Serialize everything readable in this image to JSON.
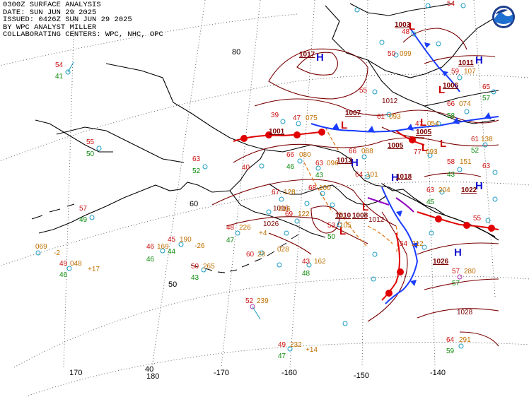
{
  "header": {
    "line1": "0300Z SURFACE ANALYSIS",
    "line2": "DATE: SUN JUN 29 2025",
    "line3": "ISSUED: 0426Z SUN JUN 29 2025",
    "line4": "BY WPC ANALYST MILLER",
    "line5": "COLLABORATING CENTERS: WPC, NHC, OPC"
  },
  "logo": {
    "name": "noaa-logo-icon"
  },
  "colors": {
    "isobar": "#7a0000",
    "cold_front": "#1a3cff",
    "warm_front": "#e00000",
    "trough": "#e07010",
    "high": "#1010d0",
    "low": "#cc0000",
    "temp": "#cc1010",
    "dew": "#0a8a0a",
    "pressure": "#c07000",
    "station": "#1a9bc0"
  },
  "grid_labels": {
    "lon": [
      "170",
      "180",
      "-170",
      "-160",
      "-150",
      "-140"
    ],
    "lat": [
      "80",
      "60",
      "50",
      "40"
    ]
  },
  "pressure_centers": [
    {
      "type": "H",
      "value": "1017"
    },
    {
      "type": "H",
      "value": "1011"
    },
    {
      "type": "L",
      "value": "1003"
    },
    {
      "type": "L",
      "value": "1006"
    },
    {
      "type": "L",
      "value": "1007"
    },
    {
      "type": "L",
      "value": "1005"
    },
    {
      "type": "L",
      "value": "1005"
    },
    {
      "type": "H",
      "value": "1013"
    },
    {
      "type": "H",
      "value": "1018"
    },
    {
      "type": "H",
      "value": "1022"
    },
    {
      "type": "L",
      "value": "1010"
    },
    {
      "type": "L",
      "value": "1008"
    },
    {
      "type": "H",
      "value": "1026"
    },
    {
      "type": "L",
      "value": "1001"
    }
  ],
  "isobar_labels": [
    "1012",
    "1028",
    "1026",
    "1016",
    "1012"
  ],
  "stations": [
    {
      "t": "54",
      "d": "41",
      "p": ""
    },
    {
      "t": "55",
      "d": "50",
      "p": ""
    },
    {
      "t": "57",
      "d": "49",
      "p": ""
    },
    {
      "t": "",
      "d": "",
      "p": "069",
      "tend": "-2"
    },
    {
      "t": "49",
      "d": "46",
      "p": "048",
      "tend": "+17"
    },
    {
      "t": "46",
      "d": "46",
      "p": "169"
    },
    {
      "t": "45",
      "d": "44",
      "p": "190",
      "tend": "-26"
    },
    {
      "t": "50",
      "d": "43",
      "p": "265"
    },
    {
      "t": "48",
      "d": "47",
      "p": "226",
      "tend": "+4"
    },
    {
      "t": "60",
      "d": "",
      "p": "28"
    },
    {
      "t": "52",
      "d": "",
      "p": "239"
    },
    {
      "t": "49",
      "d": "47",
      "p": "232",
      "tend": "+14"
    },
    {
      "t": "43",
      "d": "48",
      "p": "162"
    },
    {
      "t": "63",
      "d": "52",
      "p": ""
    },
    {
      "t": "39",
      "d": "",
      "p": ""
    },
    {
      "t": "47",
      "d": "",
      "p": "075"
    },
    {
      "t": "66",
      "d": "46",
      "p": "080"
    },
    {
      "t": "63",
      "d": "43",
      "p": "096"
    },
    {
      "t": "66",
      "d": "",
      "p": "088"
    },
    {
      "t": "64",
      "d": "",
      "p": "101"
    },
    {
      "t": "68",
      "d": "",
      "p": "100"
    },
    {
      "t": "67",
      "d": "",
      "p": "128"
    },
    {
      "t": "69",
      "d": "",
      "p": "122"
    },
    {
      "t": "53",
      "d": "50",
      "p": "105"
    },
    {
      "t": "61",
      "d": "",
      "p": "093"
    },
    {
      "t": "55",
      "d": "",
      "p": ""
    },
    {
      "t": "47",
      "d": "",
      "p": "054"
    },
    {
      "t": "77",
      "d": "",
      "p": "093"
    },
    {
      "t": "58",
      "d": "43",
      "p": "151"
    },
    {
      "t": "63",
      "d": "45",
      "p": "204"
    },
    {
      "t": "54",
      "d": "",
      "p": "212"
    },
    {
      "t": "57",
      "d": "57",
      "p": "280"
    },
    {
      "t": "64",
      "d": "59",
      "p": "291"
    },
    {
      "t": "59",
      "d": "",
      "p": "107"
    },
    {
      "t": "66",
      "d": "58",
      "p": "074"
    },
    {
      "t": "61",
      "d": "52",
      "p": "138"
    },
    {
      "t": "65",
      "d": "57",
      "p": ""
    },
    {
      "t": "63",
      "d": "",
      "p": ""
    },
    {
      "t": "55",
      "d": "",
      "p": ""
    },
    {
      "t": "54",
      "d": "",
      "p": ""
    },
    {
      "t": "50",
      "d": "",
      "p": "099"
    },
    {
      "t": "48",
      "d": "",
      "p": ""
    },
    {
      "t": "40",
      "d": "",
      "p": ""
    },
    {
      "t": "",
      "d": "",
      "p": "028"
    },
    {
      "t": "",
      "d": "",
      "p": "016"
    }
  ]
}
